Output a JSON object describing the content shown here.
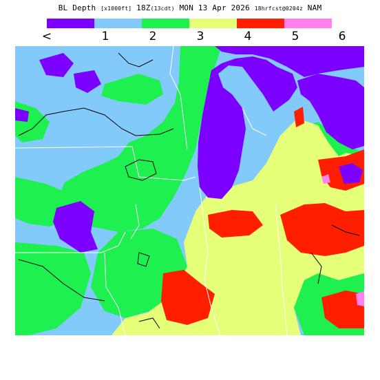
{
  "title": {
    "main": "BL Depth",
    "units": "[x1000ft]",
    "time": "18Z",
    "time_local": "(13cdt)",
    "date": "MON 13 Apr 2026",
    "forecast": "18hrfcst@0204z",
    "model": "NAM"
  },
  "legend": {
    "colors": [
      "#7b00ff",
      "#82cafa",
      "#1ef050",
      "#e6ff78",
      "#ff1e00",
      "#ff82f0"
    ],
    "labels": [
      "<",
      "1",
      "2",
      "3",
      "4",
      "5",
      "6"
    ]
  },
  "map": {
    "colors": {
      "lake": "#7b00ff",
      "depth_lt1": "#7b00ff",
      "depth_1_2": "#82cafa",
      "depth_2_3": "#1ef050",
      "depth_3_4": "#e6ff78",
      "depth_4_5": "#ff1e00",
      "depth_5_6": "#ff82f0",
      "border": "#ffffff",
      "contour": "#000000"
    }
  }
}
